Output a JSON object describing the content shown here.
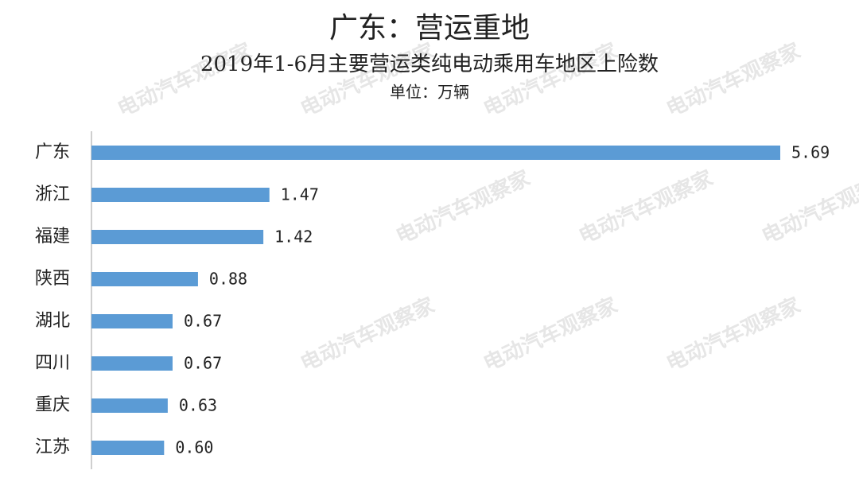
{
  "chart_data": {
    "type": "bar",
    "orientation": "horizontal",
    "title": "广东：营运重地",
    "subtitle": "2019年1-6月主要营运类纯电动乘用车地区上险数",
    "unit": "单位：万辆",
    "watermark": "电动汽车观察家",
    "categories": [
      "广东",
      "浙江",
      "福建",
      "陕西",
      "湖北",
      "四川",
      "重庆",
      "江苏"
    ],
    "values": [
      5.69,
      1.47,
      1.42,
      0.88,
      0.67,
      0.67,
      0.63,
      0.6
    ],
    "value_labels": [
      "5.69",
      "1.47",
      "1.42",
      "0.88",
      "0.67",
      "0.67",
      "0.63",
      "0.60"
    ],
    "color": "#5b9bd5"
  }
}
